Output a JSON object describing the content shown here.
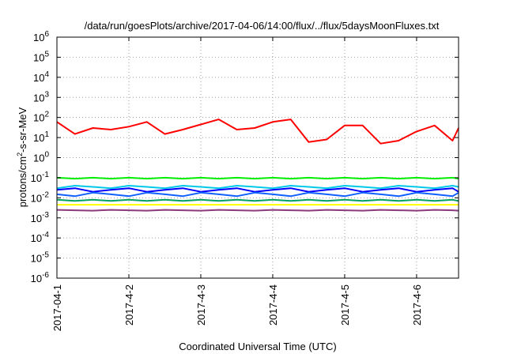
{
  "chart_data": {
    "type": "line",
    "title": "/data/run/goesPlots/archive/2017-04-06/14:00/flux/../flux/5daysMoonFluxes.txt",
    "xlabel": "Coordinated Universal Time (UTC)",
    "ylabel": "protons/cm2-s-sr-MeV",
    "ylabel_parts": {
      "before": "protons/cm",
      "sup": "2",
      "after": "-s-sr-MeV"
    },
    "y_scale": "log",
    "ylim": [
      1e-06,
      1000000.0
    ],
    "y_ticks": [
      {
        "value": 1e-06,
        "base": "10",
        "exp": "-6"
      },
      {
        "value": 1e-05,
        "base": "10",
        "exp": "-5"
      },
      {
        "value": 0.0001,
        "base": "10",
        "exp": "-4"
      },
      {
        "value": 0.001,
        "base": "10",
        "exp": "-3"
      },
      {
        "value": 0.01,
        "base": "10",
        "exp": "-2"
      },
      {
        "value": 0.1,
        "base": "10",
        "exp": "-1"
      },
      {
        "value": 1,
        "base": "10",
        "exp": "0"
      },
      {
        "value": 10,
        "base": "10",
        "exp": "1"
      },
      {
        "value": 100,
        "base": "10",
        "exp": "2"
      },
      {
        "value": 1000,
        "base": "10",
        "exp": "3"
      },
      {
        "value": 10000,
        "base": "10",
        "exp": "4"
      },
      {
        "value": 100000,
        "base": "10",
        "exp": "5"
      },
      {
        "value": 1000000,
        "base": "10",
        "exp": "6"
      }
    ],
    "xlim": [
      "2017-04-01",
      "2017-04-06 14:00"
    ],
    "x_ticks": [
      {
        "value": "2017-04-01",
        "label": "2017-04-1"
      },
      {
        "value": "2017-04-02",
        "label": "2017-4-2"
      },
      {
        "value": "2017-04-03",
        "label": "2017-4-3"
      },
      {
        "value": "2017-04-04",
        "label": "2017-4-4"
      },
      {
        "value": "2017-04-05",
        "label": "2017-4-5"
      },
      {
        "value": "2017-04-06",
        "label": "2017-4-6"
      }
    ],
    "grid": true,
    "x": [
      "2017-04-01 00:00",
      "2017-04-01 06:00",
      "2017-04-01 12:00",
      "2017-04-01 18:00",
      "2017-04-02 00:00",
      "2017-04-02 06:00",
      "2017-04-02 12:00",
      "2017-04-02 18:00",
      "2017-04-03 00:00",
      "2017-04-03 06:00",
      "2017-04-03 12:00",
      "2017-04-03 18:00",
      "2017-04-04 00:00",
      "2017-04-04 06:00",
      "2017-04-04 12:00",
      "2017-04-04 18:00",
      "2017-04-05 00:00",
      "2017-04-05 06:00",
      "2017-04-05 12:00",
      "2017-04-05 18:00",
      "2017-04-06 00:00",
      "2017-04-06 06:00",
      "2017-04-06 12:00",
      "2017-04-06 14:00"
    ],
    "series": [
      {
        "color": "#ff0000",
        "values": [
          60,
          15,
          30,
          25,
          35,
          60,
          15,
          25,
          45,
          80,
          25,
          30,
          60,
          80,
          6,
          8,
          40,
          40,
          5,
          7,
          20,
          40,
          7,
          30
        ]
      },
      {
        "color": "#00ee00",
        "values": [
          0.1,
          0.09,
          0.1,
          0.09,
          0.1,
          0.09,
          0.1,
          0.09,
          0.1,
          0.09,
          0.1,
          0.09,
          0.1,
          0.09,
          0.1,
          0.09,
          0.1,
          0.09,
          0.1,
          0.09,
          0.1,
          0.09,
          0.1,
          0.09
        ]
      },
      {
        "color": "#00c8e8",
        "values": [
          0.03,
          0.04,
          0.035,
          0.03,
          0.04,
          0.035,
          0.03,
          0.04,
          0.035,
          0.03,
          0.04,
          0.035,
          0.03,
          0.04,
          0.035,
          0.03,
          0.04,
          0.035,
          0.03,
          0.04,
          0.035,
          0.03,
          0.04,
          0.035
        ]
      },
      {
        "color": "#0000ff",
        "values": [
          0.025,
          0.03,
          0.02,
          0.025,
          0.03,
          0.02,
          0.025,
          0.03,
          0.02,
          0.025,
          0.03,
          0.02,
          0.025,
          0.03,
          0.02,
          0.025,
          0.03,
          0.02,
          0.025,
          0.03,
          0.02,
          0.025,
          0.03,
          0.02
        ]
      },
      {
        "color": "#1060ff",
        "values": [
          0.015,
          0.012,
          0.018,
          0.015,
          0.012,
          0.018,
          0.015,
          0.012,
          0.018,
          0.015,
          0.012,
          0.018,
          0.015,
          0.012,
          0.018,
          0.015,
          0.012,
          0.018,
          0.015,
          0.012,
          0.018,
          0.015,
          0.012,
          0.018
        ]
      },
      {
        "color": "#00a060",
        "values": [
          0.008,
          0.007,
          0.008,
          0.007,
          0.008,
          0.007,
          0.008,
          0.007,
          0.008,
          0.007,
          0.008,
          0.007,
          0.008,
          0.007,
          0.008,
          0.007,
          0.008,
          0.007,
          0.008,
          0.007,
          0.008,
          0.007,
          0.008,
          0.007
        ]
      },
      {
        "color": "#ffff00",
        "values": [
          0.0045,
          0.0045,
          0.0045,
          0.0045,
          0.0045,
          0.0045,
          0.0045,
          0.0045,
          0.0045,
          0.0045,
          0.0045,
          0.0045,
          0.0045,
          0.0045,
          0.0045,
          0.0045,
          0.0045,
          0.0045,
          0.0045,
          0.0045,
          0.0045,
          0.0045,
          0.0045,
          0.0045
        ]
      },
      {
        "color": "#8b3a7a",
        "values": [
          0.0025,
          0.0024,
          0.0023,
          0.0025,
          0.0024,
          0.0023,
          0.0025,
          0.0024,
          0.0023,
          0.0025,
          0.0024,
          0.0023,
          0.0025,
          0.0024,
          0.0023,
          0.0025,
          0.0024,
          0.0023,
          0.0025,
          0.0024,
          0.0023,
          0.0025,
          0.0024,
          0.0023
        ]
      }
    ]
  }
}
